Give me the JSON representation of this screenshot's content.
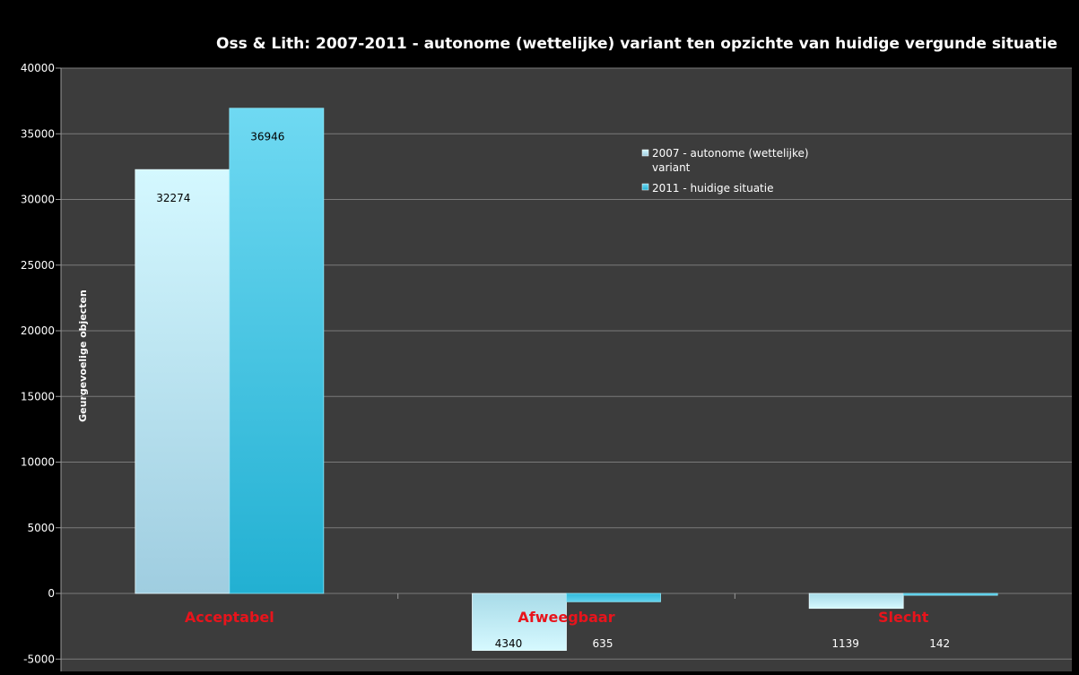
{
  "chart_data": {
    "type": "bar",
    "title": "Oss & Lith: 2007-2011 - autonome (wettelijke) variant ten opzichte van huidige vergunde situatie",
    "ylabel": "Geurgevoelige objecten",
    "xlabel": "",
    "categories": [
      "Acceptabel",
      "Afweegbaar",
      "Slecht"
    ],
    "series": [
      {
        "name": "2007 - autonome (wettelijke) variant",
        "values": [
          32274,
          -4340,
          -1139
        ],
        "labels": [
          "32274",
          "4340",
          "1139"
        ]
      },
      {
        "name": "2011 - huidige situatie",
        "values": [
          36946,
          -635,
          -142
        ],
        "labels": [
          "36946",
          "635",
          "142"
        ]
      }
    ],
    "ylim": [
      -5000,
      40000
    ],
    "yticks": [
      -5000,
      0,
      5000,
      10000,
      15000,
      20000,
      25000,
      30000,
      35000,
      40000
    ],
    "grid": true,
    "legend": "top-right",
    "colors": {
      "background": "#000000",
      "plot_area": "#3c3c3c",
      "gridline": "#7a7a7a",
      "text": "#ffffff",
      "category_label": "#e8141c",
      "series_1": "#bdeef8",
      "series_2": "#3cc3e0"
    }
  }
}
